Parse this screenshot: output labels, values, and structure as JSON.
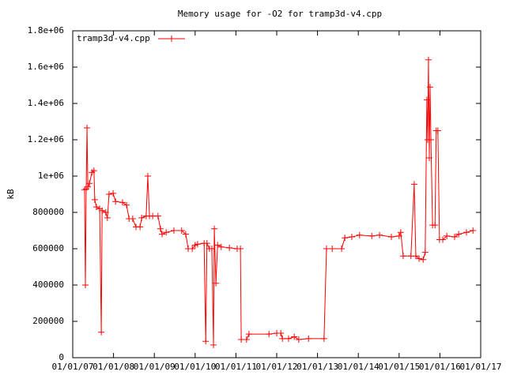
{
  "chart_data": {
    "type": "line",
    "title": "Memory usage for -O2 for tramp3d-v4.cpp",
    "ylabel": "kB",
    "legend": "top-left",
    "xlim": [
      2007,
      2017
    ],
    "xticks": [
      {
        "value": 2007,
        "label": "01/01/07"
      },
      {
        "value": 2008,
        "label": "01/01/08"
      },
      {
        "value": 2009,
        "label": "01/01/09"
      },
      {
        "value": 2010,
        "label": "01/01/10"
      },
      {
        "value": 2011,
        "label": "01/01/11"
      },
      {
        "value": 2012,
        "label": "01/01/12"
      },
      {
        "value": 2013,
        "label": "01/01/13"
      },
      {
        "value": 2014,
        "label": "01/01/14"
      },
      {
        "value": 2015,
        "label": "01/01/15"
      },
      {
        "value": 2016,
        "label": "01/01/16"
      },
      {
        "value": 2017,
        "label": "01/01/17"
      }
    ],
    "ylim": [
      0,
      1800000
    ],
    "yticks": [
      0,
      200000,
      400000,
      600000,
      800000,
      {
        "value": 1000000,
        "label": "1e+06"
      },
      {
        "value": 1200000,
        "label": "1.2e+06"
      },
      {
        "value": 1400000,
        "label": "1.4e+06"
      },
      {
        "value": 1600000,
        "label": "1.6e+06"
      },
      {
        "value": 1800000,
        "label": "1.8e+06"
      }
    ],
    "series": [
      {
        "name": "tramp3d-v4.cpp",
        "color": "#ff0000",
        "x": [
          2007.29,
          2007.31,
          2007.33,
          2007.35,
          2007.37,
          2007.41,
          2007.47,
          2007.52,
          2007.54,
          2007.58,
          2007.66,
          2007.7,
          2007.72,
          2007.81,
          2007.85,
          2007.89,
          2007.99,
          2008.05,
          2008.22,
          2008.32,
          2008.38,
          2008.47,
          2008.55,
          2008.65,
          2008.69,
          2008.8,
          2008.84,
          2008.88,
          2008.96,
          2009.09,
          2009.15,
          2009.19,
          2009.29,
          2009.48,
          2009.67,
          2009.77,
          2009.83,
          2009.93,
          2010.0,
          2010.06,
          2010.22,
          2010.26,
          2010.29,
          2010.35,
          2010.41,
          2010.45,
          2010.47,
          2010.51,
          2010.55,
          2010.64,
          2010.84,
          2011.03,
          2011.11,
          2011.13,
          2011.26,
          2011.32,
          2011.81,
          2012.0,
          2012.1,
          2012.14,
          2012.29,
          2012.43,
          2012.54,
          2012.78,
          2013.16,
          2013.22,
          2013.36,
          2013.59,
          2013.67,
          2013.84,
          2014.03,
          2014.33,
          2014.52,
          2014.81,
          2015.0,
          2015.04,
          2015.1,
          2015.29,
          2015.37,
          2015.41,
          2015.49,
          2015.59,
          2015.64,
          2015.68,
          2015.7,
          2015.72,
          2015.74,
          2015.76,
          2015.78,
          2015.82,
          2015.88,
          2015.91,
          2015.95,
          2015.99,
          2016.07,
          2016.17,
          2016.36,
          2016.46,
          2016.65,
          2016.81
        ],
        "values": [
          925000,
          400000,
          930000,
          1265000,
          940000,
          960000,
          1020000,
          1030000,
          870000,
          830000,
          820000,
          140000,
          810000,
          800000,
          770000,
          900000,
          905000,
          860000,
          855000,
          840000,
          765000,
          765000,
          720000,
          720000,
          770000,
          780000,
          1000000,
          780000,
          780000,
          780000,
          710000,
          680000,
          690000,
          700000,
          700000,
          680000,
          600000,
          600000,
          620000,
          625000,
          630000,
          90000,
          630000,
          600000,
          600000,
          70000,
          710000,
          410000,
          620000,
          610000,
          605000,
          600000,
          600000,
          100000,
          100000,
          130000,
          130000,
          135000,
          135000,
          105000,
          105000,
          115000,
          100000,
          105000,
          105000,
          600000,
          600000,
          600000,
          660000,
          665000,
          675000,
          670000,
          675000,
          665000,
          670000,
          690000,
          560000,
          560000,
          955000,
          560000,
          545000,
          540000,
          580000,
          1420000,
          1200000,
          1640000,
          1100000,
          1490000,
          1200000,
          730000,
          730000,
          1250000,
          1250000,
          650000,
          650000,
          670000,
          665000,
          680000,
          690000,
          700000
        ]
      }
    ]
  }
}
